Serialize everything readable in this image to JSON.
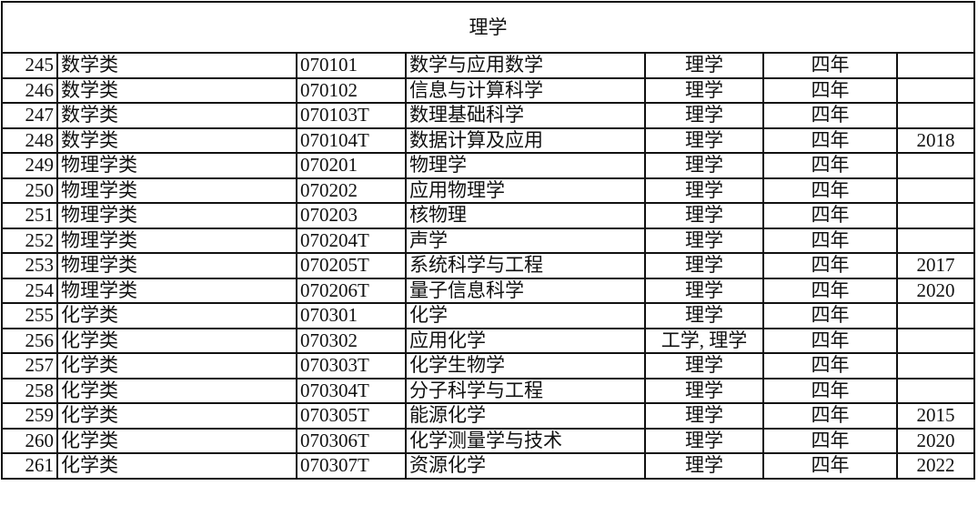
{
  "section_title": "理学",
  "rows": [
    [
      "245",
      "数学类",
      "070101",
      "数学与应用数学",
      "理学",
      "四年",
      ""
    ],
    [
      "246",
      "数学类",
      "070102",
      "信息与计算科学",
      "理学",
      "四年",
      ""
    ],
    [
      "247",
      "数学类",
      "070103T",
      "数理基础科学",
      "理学",
      "四年",
      ""
    ],
    [
      "248",
      "数学类",
      "070104T",
      "数据计算及应用",
      "理学",
      "四年",
      "2018"
    ],
    [
      "249",
      "物理学类",
      "070201",
      "物理学",
      "理学",
      "四年",
      ""
    ],
    [
      "250",
      "物理学类",
      "070202",
      "应用物理学",
      "理学",
      "四年",
      ""
    ],
    [
      "251",
      "物理学类",
      "070203",
      "核物理",
      "理学",
      "四年",
      ""
    ],
    [
      "252",
      "物理学类",
      "070204T",
      "声学",
      "理学",
      "四年",
      ""
    ],
    [
      "253",
      "物理学类",
      "070205T",
      "系统科学与工程",
      "理学",
      "四年",
      "2017"
    ],
    [
      "254",
      "物理学类",
      "070206T",
      "量子信息科学",
      "理学",
      "四年",
      "2020"
    ],
    [
      "255",
      "化学类",
      "070301",
      "化学",
      "理学",
      "四年",
      ""
    ],
    [
      "256",
      "化学类",
      "070302",
      "应用化学",
      "工学, 理学",
      "四年",
      ""
    ],
    [
      "257",
      "化学类",
      "070303T",
      "化学生物学",
      "理学",
      "四年",
      ""
    ],
    [
      "258",
      "化学类",
      "070304T",
      "分子科学与工程",
      "理学",
      "四年",
      ""
    ],
    [
      "259",
      "化学类",
      "070305T",
      "能源化学",
      "理学",
      "四年",
      "2015"
    ],
    [
      "260",
      "化学类",
      "070306T",
      "化学测量学与技术",
      "理学",
      "四年",
      "2020"
    ],
    [
      "261",
      "化学类",
      "070307T",
      "资源化学",
      "理学",
      "四年",
      "2022"
    ]
  ]
}
